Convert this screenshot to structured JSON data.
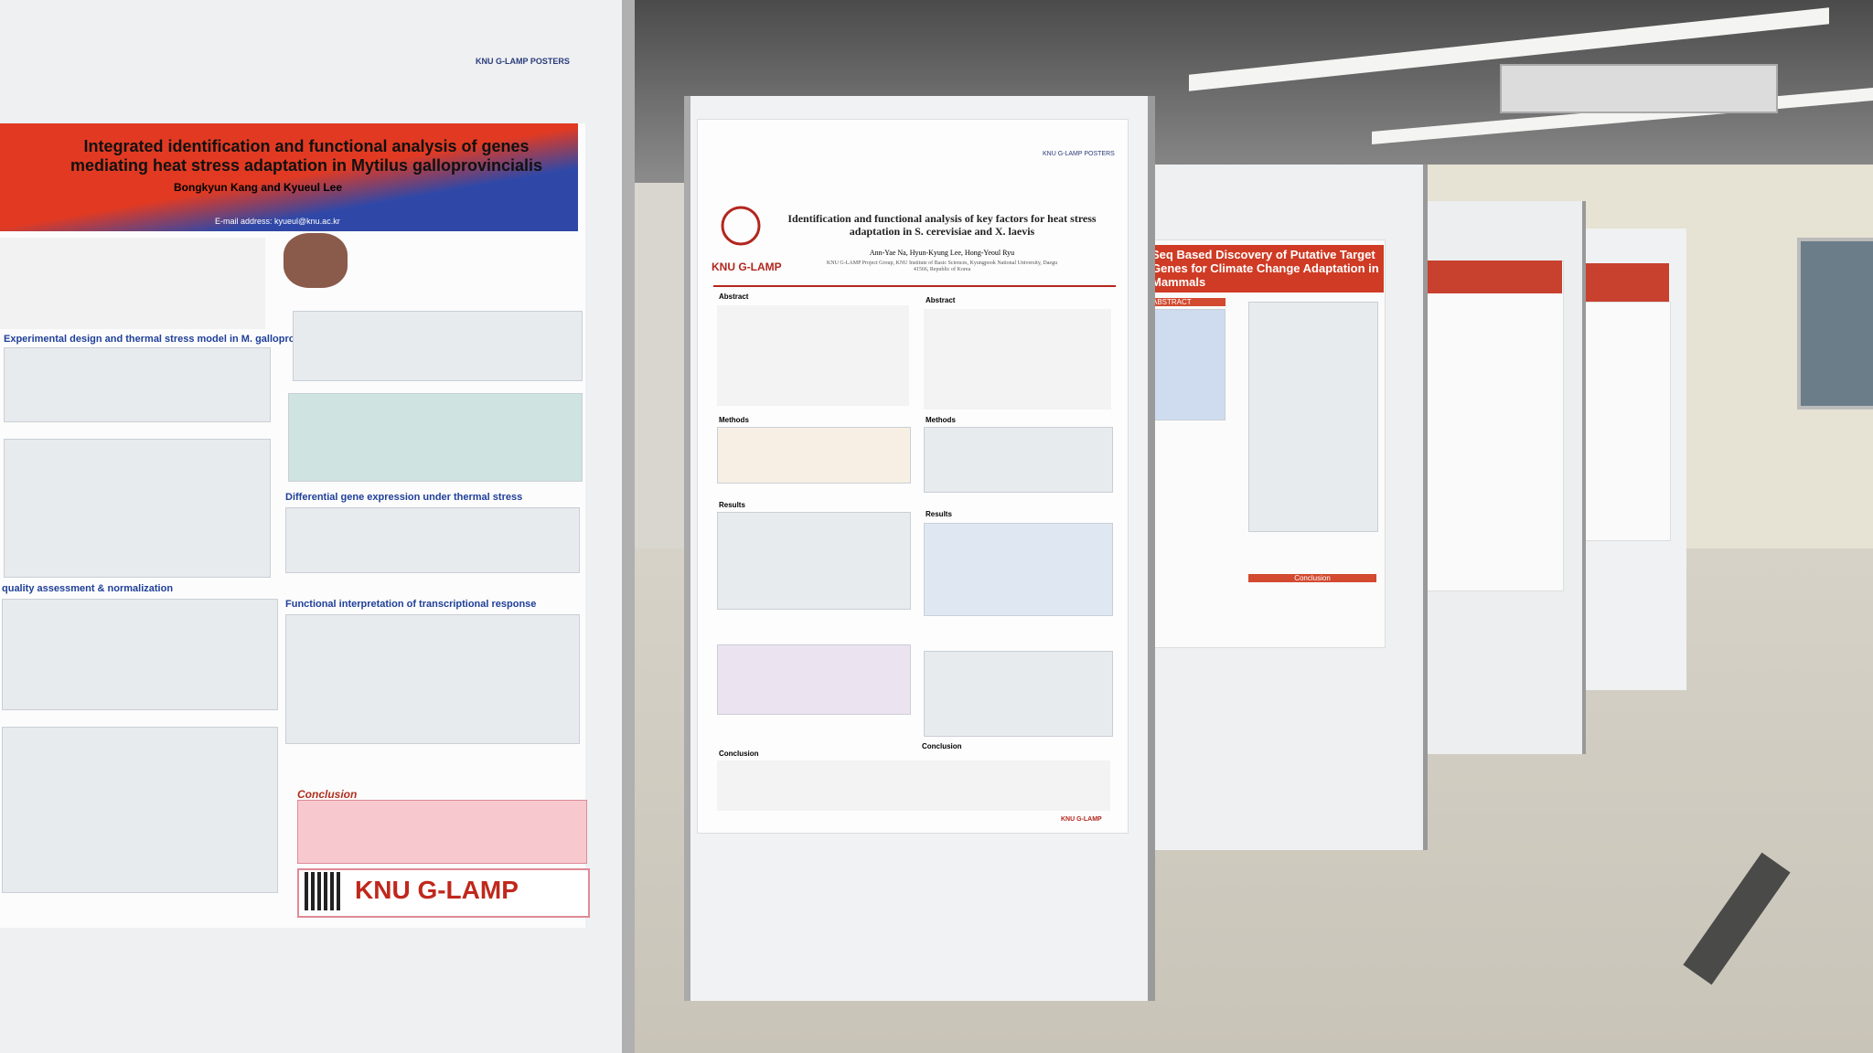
{
  "poster_1": {
    "tag": "KNU G-LAMP POSTERS",
    "title": "Integrated identification and functional analysis of genes mediating heat stress adaptation in Mytilus galloprovincialis",
    "authors": "Bongkyun Kang and Kyueul Lee",
    "email": "E-mail address: kyueul@knu.ac.kr",
    "sections": [
      "Experimental design and thermal stress model in M. galloprovincialis",
      "Differential gene expression under thermal stress",
      "quality assessment & normalization",
      "Functional interpretation of transcriptional response",
      "Conclusion"
    ],
    "logo": "KNU G-LAMP"
  },
  "poster_2": {
    "tag": "KNU G-LAMP POSTERS",
    "title": "Identification and functional analysis of key factors for heat stress adaptation in S. cerevisiae and X. laevis",
    "authors": "Ann-Yae Na, Hyun-Kyung Lee, Hong-Yeoul Ryu",
    "affiliation": "KNU G-LAMP Project Group, KNU Institute of Basic Sciences, Kyungpook National University, Daegu 41566, Republic of Korea",
    "logo": "KNU G-LAMP",
    "sections": [
      "Abstract",
      "Abstract",
      "Methods",
      "Methods",
      "Results",
      "Results",
      "Conclusion",
      "Conclusion"
    ]
  },
  "poster_3": {
    "title": "Seq Based Discovery of Putative Target Genes for Climate Change Adaptation in Mammals",
    "sections": [
      "ABSTRACT",
      "Conclusion"
    ]
  }
}
